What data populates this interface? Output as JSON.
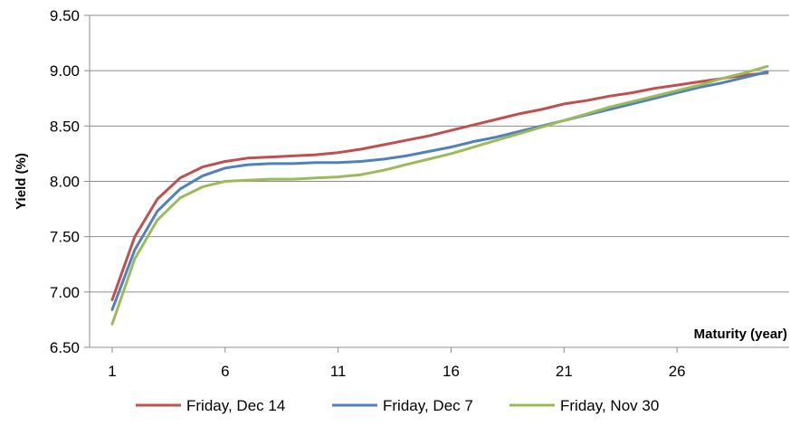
{
  "chart_data": {
    "type": "line",
    "title": "",
    "xlabel": "Maturity (year)",
    "ylabel": "Yield (%)",
    "xlim": [
      0,
      31
    ],
    "ylim": [
      6.5,
      9.5
    ],
    "x_ticks": [
      1,
      6,
      11,
      16,
      21,
      26
    ],
    "x_tick_labels": [
      "1",
      "6",
      "11",
      "16",
      "21",
      "26"
    ],
    "y_ticks": [
      6.5,
      7.0,
      7.5,
      8.0,
      8.5,
      9.0,
      9.5
    ],
    "y_tick_labels": [
      "6.50",
      "7.00",
      "7.50",
      "8.00",
      "8.50",
      "9.00",
      "9.50"
    ],
    "grid": "horizontal",
    "legend_position": "bottom",
    "x": [
      1,
      2,
      3,
      4,
      5,
      6,
      7,
      8,
      9,
      10,
      11,
      12,
      13,
      14,
      15,
      16,
      17,
      18,
      19,
      20,
      21,
      22,
      23,
      24,
      25,
      26,
      27,
      28,
      29,
      30
    ],
    "series": [
      {
        "name": "Friday, Dec 14",
        "color": "#c0504d",
        "values": [
          6.93,
          7.5,
          7.84,
          8.03,
          8.13,
          8.18,
          8.21,
          8.22,
          8.23,
          8.24,
          8.26,
          8.29,
          8.33,
          8.37,
          8.41,
          8.46,
          8.51,
          8.56,
          8.61,
          8.65,
          8.7,
          8.73,
          8.77,
          8.8,
          8.84,
          8.87,
          8.9,
          8.93,
          8.96,
          8.98
        ]
      },
      {
        "name": "Friday, Dec 7",
        "color": "#4f81bd",
        "values": [
          6.84,
          7.38,
          7.73,
          7.93,
          8.05,
          8.12,
          8.15,
          8.16,
          8.16,
          8.17,
          8.17,
          8.18,
          8.2,
          8.23,
          8.27,
          8.31,
          8.36,
          8.4,
          8.45,
          8.5,
          8.55,
          8.6,
          8.65,
          8.7,
          8.75,
          8.8,
          8.85,
          8.89,
          8.94,
          8.99
        ]
      },
      {
        "name": "Friday, Nov 30",
        "color": "#9bbb59",
        "values": [
          6.71,
          7.3,
          7.65,
          7.85,
          7.95,
          8.0,
          8.01,
          8.02,
          8.02,
          8.03,
          8.04,
          8.06,
          8.1,
          8.15,
          8.2,
          8.25,
          8.31,
          8.37,
          8.43,
          8.49,
          8.55,
          8.61,
          8.67,
          8.72,
          8.77,
          8.82,
          8.87,
          8.93,
          8.98,
          9.04
        ]
      }
    ]
  }
}
